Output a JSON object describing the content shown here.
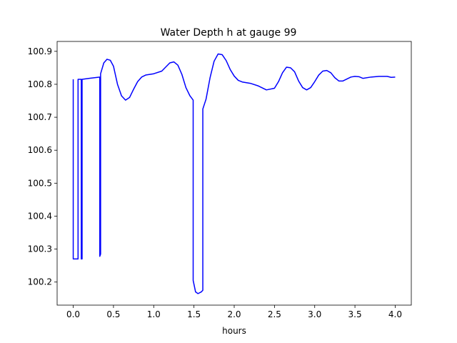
{
  "chart_data": {
    "type": "line",
    "title": "Water Depth h at gauge 99",
    "xlabel": "hours",
    "ylabel": "",
    "xlim": [
      -0.2,
      4.2
    ],
    "ylim": [
      100.13,
      100.93
    ],
    "xticks": [
      0.0,
      0.5,
      1.0,
      1.5,
      2.0,
      2.5,
      3.0,
      3.5,
      4.0
    ],
    "xtick_labels": [
      "0.0",
      "0.5",
      "1.0",
      "1.5",
      "2.0",
      "2.5",
      "3.0",
      "3.5",
      "4.0"
    ],
    "yticks": [
      100.2,
      100.3,
      100.4,
      100.5,
      100.6,
      100.7,
      100.8,
      100.9
    ],
    "ytick_labels": [
      "100.2",
      "100.3",
      "100.4",
      "100.5",
      "100.6",
      "100.7",
      "100.8",
      "100.9"
    ],
    "grid": false,
    "line_color": "#0000ff",
    "series": [
      {
        "x": [
          0.0,
          0.0,
          0.01,
          0.06,
          0.06,
          0.1,
          0.1,
          0.11,
          0.11,
          0.2,
          0.33,
          0.33,
          0.34,
          0.34,
          0.38,
          0.42,
          0.46,
          0.5,
          0.55,
          0.6,
          0.65,
          0.7,
          0.75,
          0.8,
          0.85,
          0.9,
          0.95,
          1.0,
          1.1,
          1.2,
          1.25,
          1.3,
          1.35,
          1.4,
          1.45,
          1.49,
          1.49,
          1.52,
          1.55,
          1.59,
          1.61,
          1.61,
          1.65,
          1.7,
          1.75,
          1.8,
          1.85,
          1.9,
          1.95,
          2.0,
          2.05,
          2.1,
          2.2,
          2.3,
          2.4,
          2.5,
          2.55,
          2.6,
          2.65,
          2.7,
          2.75,
          2.8,
          2.85,
          2.9,
          2.95,
          3.0,
          3.05,
          3.1,
          3.15,
          3.2,
          3.25,
          3.3,
          3.35,
          3.4,
          3.45,
          3.5,
          3.55,
          3.6,
          3.7,
          3.8,
          3.9,
          3.95,
          4.0
        ],
        "y": [
          100.815,
          100.27,
          100.27,
          100.27,
          100.815,
          100.815,
          100.27,
          100.27,
          100.815,
          100.818,
          100.822,
          100.278,
          100.285,
          100.832,
          100.865,
          100.876,
          100.873,
          100.855,
          100.8,
          100.765,
          100.752,
          100.76,
          100.785,
          100.808,
          100.822,
          100.828,
          100.83,
          100.832,
          100.84,
          100.865,
          100.868,
          100.858,
          100.83,
          100.79,
          100.765,
          100.752,
          100.205,
          100.17,
          100.165,
          100.17,
          100.175,
          100.725,
          100.755,
          100.82,
          100.87,
          100.892,
          100.89,
          100.872,
          100.845,
          100.825,
          100.812,
          100.807,
          100.803,
          100.795,
          100.783,
          100.788,
          100.808,
          100.835,
          100.852,
          100.85,
          100.838,
          100.81,
          100.79,
          100.783,
          100.79,
          100.808,
          100.828,
          100.84,
          100.842,
          100.835,
          100.82,
          100.81,
          100.81,
          100.816,
          100.822,
          100.824,
          100.823,
          100.818,
          100.822,
          100.824,
          100.824,
          100.821,
          100.822
        ]
      }
    ]
  }
}
